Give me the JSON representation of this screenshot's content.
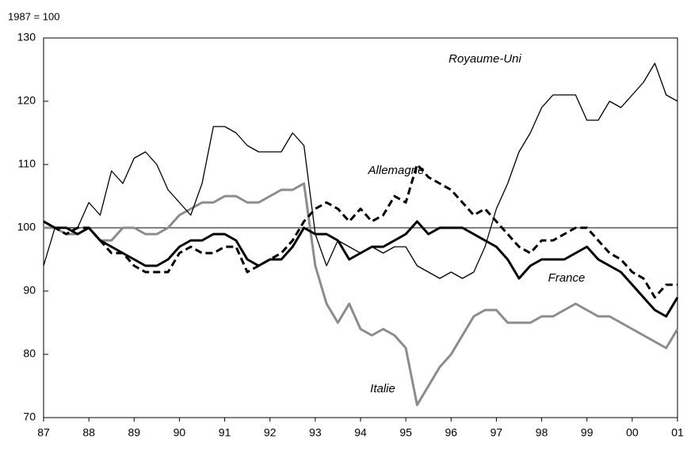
{
  "chart_data": {
    "type": "line",
    "y_label": "1987 = 100",
    "x": [
      1987,
      1987.25,
      1987.5,
      1987.75,
      1988,
      1988.25,
      1988.5,
      1988.75,
      1989,
      1989.25,
      1989.5,
      1989.75,
      1990,
      1990.25,
      1990.5,
      1990.75,
      1991,
      1991.25,
      1991.5,
      1991.75,
      1992,
      1992.25,
      1992.5,
      1992.75,
      1993,
      1993.25,
      1993.5,
      1993.75,
      1994,
      1994.25,
      1994.5,
      1994.75,
      1995,
      1995.25,
      1995.5,
      1995.75,
      1996,
      1996.25,
      1996.5,
      1996.75,
      1997,
      1997.25,
      1997.5,
      1997.75,
      1998,
      1998.25,
      1998.5,
      1998.75,
      1999,
      1999.25,
      1999.5,
      1999.75,
      2000,
      2000.25,
      2000.5,
      2000.75,
      2001
    ],
    "series": [
      {
        "name": "Royaume-Uni",
        "color": "#000000",
        "thick": false,
        "dashed": false,
        "values": [
          94,
          100,
          100,
          100,
          104,
          102,
          109,
          107,
          111,
          112,
          110,
          106,
          104,
          102,
          107,
          116,
          116,
          115,
          113,
          112,
          112,
          112,
          115,
          113,
          99,
          94,
          98,
          97,
          96,
          97,
          96,
          97,
          97,
          94,
          93,
          92,
          93,
          92,
          93,
          97,
          103,
          107,
          112,
          115,
          119,
          121,
          121,
          121,
          117,
          117,
          120,
          119,
          121,
          123,
          126,
          121,
          120
        ]
      },
      {
        "name": "Allemagne",
        "color": "#000000",
        "thick": true,
        "dashed": true,
        "values": [
          101,
          100,
          99,
          100,
          100,
          98,
          96,
          96,
          94,
          93,
          93,
          93,
          96,
          97,
          96,
          96,
          97,
          97,
          93,
          94,
          95,
          96,
          98,
          101,
          103,
          104,
          103,
          101,
          103,
          101,
          102,
          105,
          104,
          110,
          108,
          107,
          106,
          104,
          102,
          103,
          101,
          99,
          97,
          96,
          98,
          98,
          99,
          100,
          100,
          98,
          96,
          95,
          93,
          92,
          89,
          91,
          91
        ]
      },
      {
        "name": "France",
        "color": "#000000",
        "thick": true,
        "dashed": false,
        "values": [
          101,
          100,
          100,
          99,
          100,
          98,
          97,
          96,
          95,
          94,
          94,
          95,
          97,
          98,
          98,
          99,
          99,
          98,
          95,
          94,
          95,
          95,
          97,
          100,
          99,
          99,
          98,
          95,
          96,
          97,
          97,
          98,
          99,
          101,
          99,
          100,
          100,
          100,
          99,
          98,
          97,
          95,
          92,
          94,
          95,
          95,
          95,
          96,
          97,
          95,
          94,
          93,
          91,
          89,
          87,
          86,
          89
        ]
      },
      {
        "name": "Italie",
        "color": "#8c8c8c",
        "thick": true,
        "dashed": false,
        "values": [
          100,
          100,
          99,
          99,
          100,
          98,
          98,
          100,
          100,
          99,
          99,
          100,
          102,
          103,
          104,
          104,
          105,
          105,
          104,
          104,
          105,
          106,
          106,
          107,
          94,
          88,
          85,
          88,
          84,
          83,
          84,
          83,
          81,
          72,
          75,
          78,
          80,
          83,
          86,
          87,
          87,
          85,
          85,
          85,
          86,
          86,
          87,
          88,
          87,
          86,
          86,
          85,
          84,
          83,
          82,
          81,
          84
        ]
      }
    ],
    "xlim": [
      1987,
      2001
    ],
    "xticks": [
      {
        "value": 1987,
        "label": "87"
      },
      {
        "value": 1988,
        "label": "88"
      },
      {
        "value": 1989,
        "label": "89"
      },
      {
        "value": 1990,
        "label": "90"
      },
      {
        "value": 1991,
        "label": "91"
      },
      {
        "value": 1992,
        "label": "92"
      },
      {
        "value": 1993,
        "label": "93"
      },
      {
        "value": 1994,
        "label": "94"
      },
      {
        "value": 1995,
        "label": "95"
      },
      {
        "value": 1996,
        "label": "96"
      },
      {
        "value": 1997,
        "label": "97"
      },
      {
        "value": 1998,
        "label": "98"
      },
      {
        "value": 1999,
        "label": "99"
      },
      {
        "value": 2000,
        "label": "00"
      },
      {
        "value": 2001,
        "label": "01"
      }
    ],
    "ylim": [
      70,
      130
    ],
    "yticks": [
      70,
      80,
      90,
      100,
      110,
      120,
      130
    ],
    "reference_line": 100
  }
}
